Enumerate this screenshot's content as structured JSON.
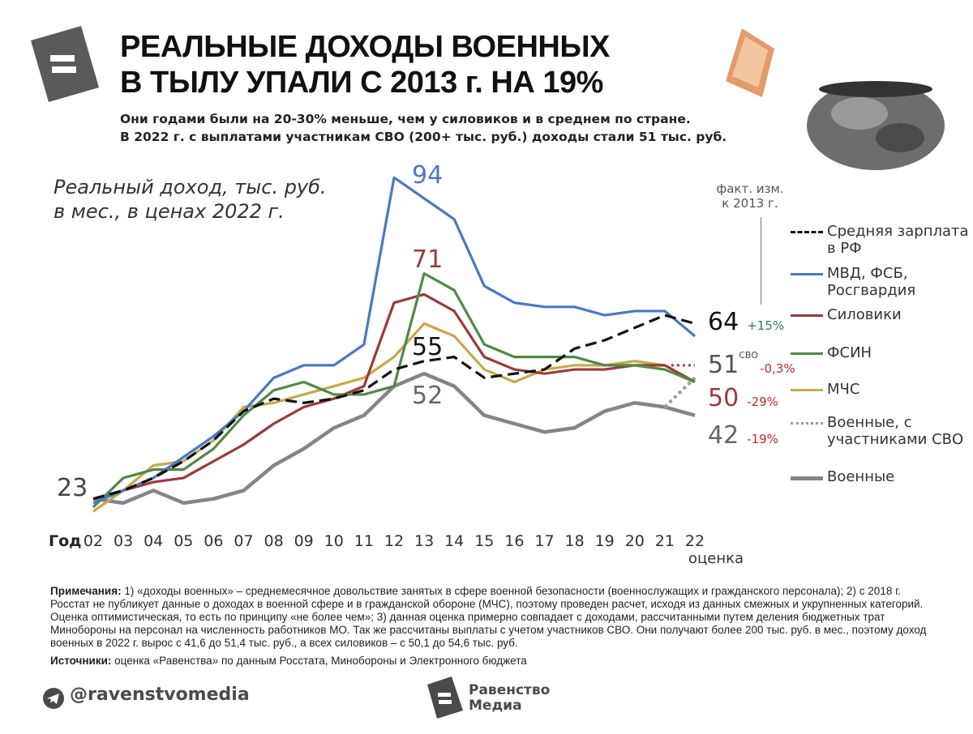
{
  "header": {
    "title_line1": "РЕАЛЬНЫЕ ДОХОДЫ ВОЕННЫХ",
    "title_line2": "В ТЫЛУ УПАЛИ С 2013 г. НА 19%",
    "subtitle_line1": "Они годами были на 20-30% меньше, чем у силовиков и в среднем по стране.",
    "subtitle_line2": "В 2022 г. с выплатами участникам СВО (200+ тыс. руб.) доходы стали 51 тыс. руб."
  },
  "chart_data": {
    "type": "line",
    "ylabel_line1": "Реальный доход, тыс. руб.",
    "ylabel_line2": "в мес., в ценах 2022 г.",
    "xlabel": "Год",
    "x_ticks": [
      "02",
      "03",
      "04",
      "05",
      "06",
      "07",
      "08",
      "09",
      "10",
      "11",
      "12",
      "13",
      "14",
      "15",
      "16",
      "17",
      "18",
      "19",
      "20",
      "21",
      "22"
    ],
    "x_note": "оценка",
    "x": [
      2002,
      2003,
      2004,
      2005,
      2006,
      2007,
      2008,
      2009,
      2010,
      2011,
      2012,
      2013,
      2014,
      2015,
      2016,
      2017,
      2018,
      2019,
      2020,
      2021,
      2022
    ],
    "series": [
      {
        "name": "Военные",
        "color": "#858585",
        "style": "solid",
        "values": [
          22,
          21,
          24,
          21,
          22,
          24,
          30,
          34,
          39,
          42,
          49,
          52,
          49,
          42,
          40,
          38,
          39,
          43,
          45,
          44,
          42
        ]
      },
      {
        "name": "Военные, с участниками СВО",
        "color": "#9a9a9a",
        "style": "dotted",
        "x": [
          2021,
          2022
        ],
        "values": [
          44,
          51
        ]
      },
      {
        "name": "МЧС",
        "color": "#c8a84a",
        "style": "solid",
        "values": [
          19,
          24,
          30,
          31,
          36,
          44,
          45,
          47,
          49,
          51,
          56,
          64,
          61,
          53,
          50,
          53,
          54,
          54,
          55,
          54,
          50
        ]
      },
      {
        "name": "Силовики",
        "color": "#9b3a3a",
        "style": "solid",
        "values": [
          22,
          24,
          26,
          27,
          31,
          35,
          40,
          44,
          46,
          49,
          69,
          71,
          67,
          56,
          53,
          52,
          53,
          53,
          54,
          54,
          50
        ]
      },
      {
        "name": "ФСИН",
        "color": "#4f8a45",
        "style": "solid",
        "values": [
          20,
          27,
          29,
          29,
          34,
          42,
          48,
          50,
          47,
          47,
          49,
          76,
          72,
          59,
          56,
          56,
          56,
          54,
          54,
          53,
          50
        ]
      },
      {
        "name": "МВД, ФСБ, Росгвардия",
        "color": "#4a78c2",
        "style": "solid",
        "values": [
          21,
          24,
          27,
          32,
          37,
          43,
          51,
          54,
          54,
          59,
          99,
          94,
          89,
          73,
          69,
          68,
          68,
          66,
          67,
          67,
          61
        ]
      },
      {
        "name": "Средняя зарплата в РФ",
        "color": "#111111",
        "style": "dashed",
        "values": [
          22,
          24,
          27,
          31,
          36,
          43,
          46,
          45,
          46,
          48,
          53,
          55,
          56,
          51,
          52,
          53,
          58,
          60,
          63,
          66,
          64
        ]
      }
    ],
    "annotations": {
      "start": "23",
      "peak_mvd": "94",
      "peak_silov": "71",
      "peak_avg": "55",
      "peak_mil": "52",
      "change_header_line1": "факт. изм.",
      "change_header_line2": "к 2013 г.",
      "end_labels": [
        {
          "value": "64",
          "change": "+15%",
          "color": "#111111",
          "change_color": "#2e7d4a"
        },
        {
          "value": "51",
          "sup": "СВО",
          "change": "-0,3%",
          "color": "#555555",
          "change_color": "#c0282d"
        },
        {
          "value": "50",
          "change": "-29%",
          "color": "#9b3a3a",
          "change_color": "#c0282d"
        },
        {
          "value": "42",
          "change": "-19%",
          "color": "#666666",
          "change_color": "#c0282d"
        }
      ]
    },
    "ylim": [
      0,
      100
    ],
    "grid": false,
    "legend_position": "right",
    "legend": [
      {
        "label": "Средняя зарплата в РФ",
        "color": "#111111",
        "style": "dashed"
      },
      {
        "label": "МВД, ФСБ, Росгвардия",
        "color": "#4a78c2",
        "style": "solid"
      },
      {
        "label": "Силовики",
        "color": "#9b3a3a",
        "style": "solid"
      },
      {
        "label": "ФСИН",
        "color": "#4f8a45",
        "style": "solid"
      },
      {
        "label": "МЧС",
        "color": "#c8a84a",
        "style": "solid"
      },
      {
        "label": "Военные, с участниками СВО",
        "color": "#9a9a9a",
        "style": "dotted"
      },
      {
        "label": "Военные",
        "color": "#858585",
        "style": "solid"
      }
    ]
  },
  "notes": {
    "label": "Примечания:",
    "text": " 1) «доходы военных» – среднемесячное довольствие занятых в сфере военной безопасности (военнослужащих и гражданского персонала); 2) с 2018 г. Росстат не публикует данные о доходах в военной сфере и в гражданской обороне (МЧС), поэтому проведен расчет, исходя из данных смежных и укрупненных категорий. Оценка оптимистическая, то есть по принципу «не более чем»; 3) данная оценка примерно совпадает с доходами, рассчитанными путем деления бюджетных трат Минобороны на персонал на численность работников МО. Так же рассчитаны выплаты с учетом участников СВО. Они получают более 200 тыс. руб. в мес., поэтому доход военных в 2022 г. вырос с 41,6 до 51,4 тыс. руб., а всех силовиков – с 50,1 до 54,6 тыс. руб.",
    "sources_label": "Источники:",
    "sources_text": " оценка «Равенства» по данным Росстата, Минобороны и Электронного бюджета"
  },
  "footer": {
    "handle": "@ravenstvomedia",
    "brand_line1": "Равенство",
    "brand_line2": "Медиа"
  }
}
